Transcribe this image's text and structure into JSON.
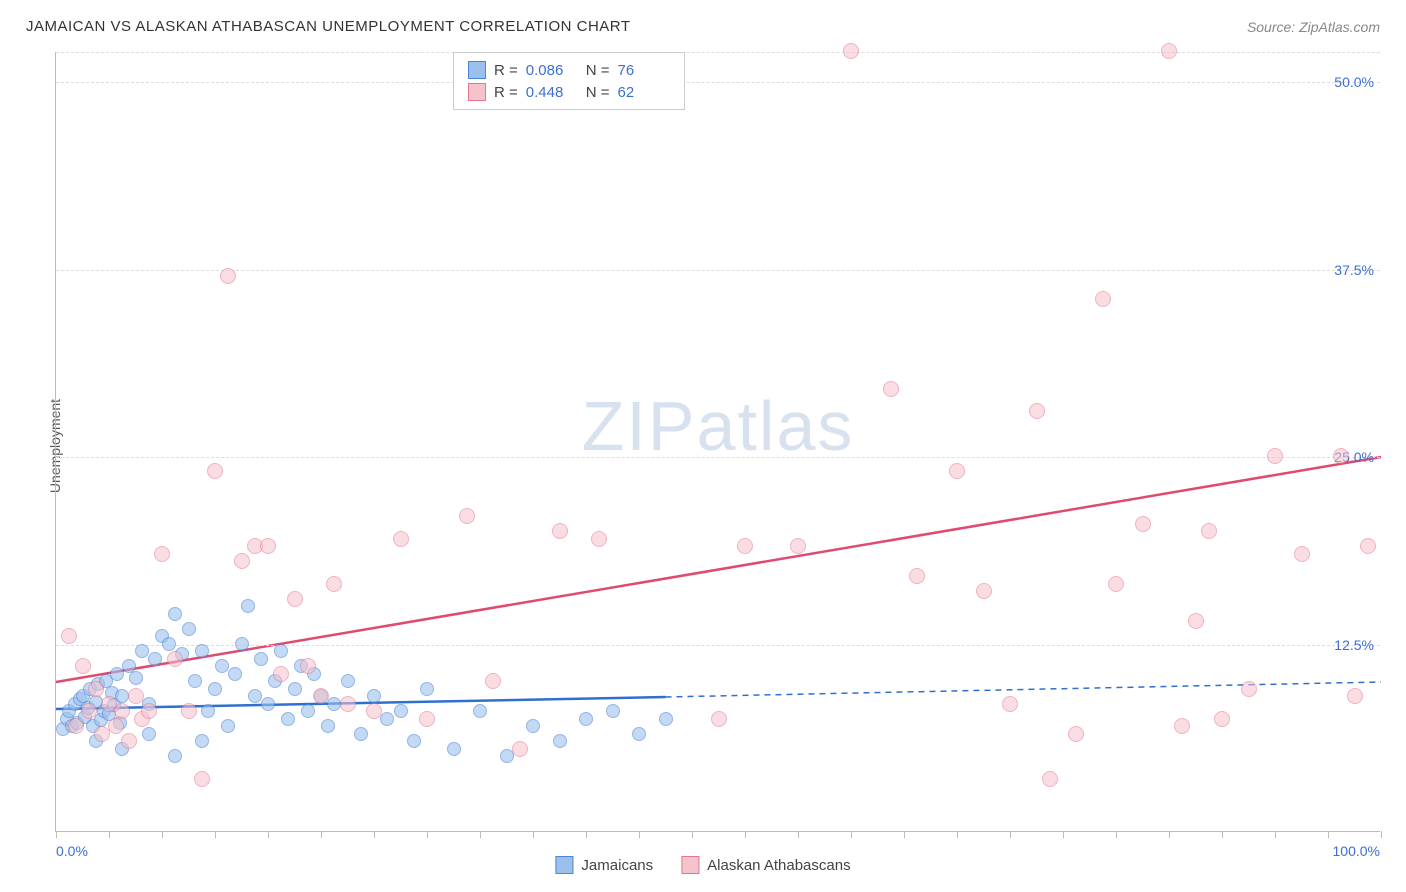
{
  "title": "JAMAICAN VS ALASKAN ATHABASCAN UNEMPLOYMENT CORRELATION CHART",
  "source": "Source: ZipAtlas.com",
  "ylabel": "Unemployment",
  "watermark_a": "ZIP",
  "watermark_b": "atlas",
  "chart": {
    "type": "scatter",
    "xlim": [
      0,
      100
    ],
    "ylim": [
      0,
      52
    ],
    "xtick_labels": [
      "0.0%",
      "100.0%"
    ],
    "ytick_positions": [
      12.5,
      25.0,
      37.5,
      50.0,
      52.0
    ],
    "ytick_labels": [
      "12.5%",
      "25.0%",
      "37.5%",
      "50.0%",
      ""
    ],
    "xtick_minor_step": 4,
    "background_color": "#ffffff",
    "grid_color": "#dddddd",
    "series": [
      {
        "name": "Jamaicans",
        "marker_fill": "#9cc0ee",
        "marker_stroke": "#4a87d8",
        "marker_opacity": 0.6,
        "marker_size": 14,
        "line_color": "#2f6fd0",
        "R": "0.086",
        "N": "76",
        "regression": {
          "x1": 0,
          "y1": 8.2,
          "x2": 46,
          "y2": 9.0,
          "dash_x2": 100,
          "dash_y2": 10.0
        },
        "points": [
          [
            0.5,
            6.8
          ],
          [
            0.8,
            7.5
          ],
          [
            1.0,
            8.0
          ],
          [
            1.2,
            7.0
          ],
          [
            1.4,
            8.5
          ],
          [
            1.6,
            7.2
          ],
          [
            1.8,
            8.8
          ],
          [
            2.0,
            9.0
          ],
          [
            2.2,
            7.6
          ],
          [
            2.4,
            8.2
          ],
          [
            2.6,
            9.5
          ],
          [
            2.8,
            7.0
          ],
          [
            3.0,
            8.6
          ],
          [
            3.2,
            9.8
          ],
          [
            3.4,
            7.4
          ],
          [
            3.6,
            8.0
          ],
          [
            3.8,
            10.0
          ],
          [
            4.0,
            7.8
          ],
          [
            4.2,
            9.2
          ],
          [
            4.4,
            8.4
          ],
          [
            4.6,
            10.5
          ],
          [
            4.8,
            7.2
          ],
          [
            5.0,
            9.0
          ],
          [
            5.5,
            11.0
          ],
          [
            6.0,
            10.2
          ],
          [
            6.5,
            12.0
          ],
          [
            7.0,
            8.5
          ],
          [
            7.5,
            11.5
          ],
          [
            8.0,
            13.0
          ],
          [
            8.5,
            12.5
          ],
          [
            9.0,
            14.5
          ],
          [
            9.5,
            11.8
          ],
          [
            10.0,
            13.5
          ],
          [
            10.5,
            10.0
          ],
          [
            11.0,
            12.0
          ],
          [
            11.5,
            8.0
          ],
          [
            12.0,
            9.5
          ],
          [
            12.5,
            11.0
          ],
          [
            13.0,
            7.0
          ],
          [
            13.5,
            10.5
          ],
          [
            14.0,
            12.5
          ],
          [
            14.5,
            15.0
          ],
          [
            15.0,
            9.0
          ],
          [
            15.5,
            11.5
          ],
          [
            16.0,
            8.5
          ],
          [
            16.5,
            10.0
          ],
          [
            17.0,
            12.0
          ],
          [
            17.5,
            7.5
          ],
          [
            18.0,
            9.5
          ],
          [
            18.5,
            11.0
          ],
          [
            19.0,
            8.0
          ],
          [
            19.5,
            10.5
          ],
          [
            20.0,
            9.0
          ],
          [
            20.5,
            7.0
          ],
          [
            21.0,
            8.5
          ],
          [
            22.0,
            10.0
          ],
          [
            23.0,
            6.5
          ],
          [
            24.0,
            9.0
          ],
          [
            25.0,
            7.5
          ],
          [
            26.0,
            8.0
          ],
          [
            27.0,
            6.0
          ],
          [
            28.0,
            9.5
          ],
          [
            30.0,
            5.5
          ],
          [
            32.0,
            8.0
          ],
          [
            34.0,
            5.0
          ],
          [
            36.0,
            7.0
          ],
          [
            38.0,
            6.0
          ],
          [
            40.0,
            7.5
          ],
          [
            42.0,
            8.0
          ],
          [
            44.0,
            6.5
          ],
          [
            46.0,
            7.5
          ],
          [
            3.0,
            6.0
          ],
          [
            5.0,
            5.5
          ],
          [
            7.0,
            6.5
          ],
          [
            9.0,
            5.0
          ],
          [
            11.0,
            6.0
          ]
        ]
      },
      {
        "name": "Alaskan Athabascans",
        "marker_fill": "#f5c3cc",
        "marker_stroke": "#e5748e",
        "marker_opacity": 0.55,
        "marker_size": 16,
        "line_color": "#e04a6f",
        "R": "0.448",
        "N": "62",
        "regression": {
          "x1": 0,
          "y1": 10.0,
          "x2": 100,
          "y2": 25.0
        },
        "points": [
          [
            1.0,
            13.0
          ],
          [
            1.5,
            7.0
          ],
          [
            2.0,
            11.0
          ],
          [
            2.5,
            8.0
          ],
          [
            3.0,
            9.5
          ],
          [
            3.5,
            6.5
          ],
          [
            4.0,
            8.5
          ],
          [
            4.5,
            7.0
          ],
          [
            5.0,
            8.0
          ],
          [
            5.5,
            6.0
          ],
          [
            6.0,
            9.0
          ],
          [
            6.5,
            7.5
          ],
          [
            7.0,
            8.0
          ],
          [
            8.0,
            18.5
          ],
          [
            9.0,
            11.5
          ],
          [
            10.0,
            8.0
          ],
          [
            11.0,
            3.5
          ],
          [
            12.0,
            24.0
          ],
          [
            13.0,
            37.0
          ],
          [
            14.0,
            18.0
          ],
          [
            15.0,
            19.0
          ],
          [
            16.0,
            19.0
          ],
          [
            17.0,
            10.5
          ],
          [
            18.0,
            15.5
          ],
          [
            19.0,
            11.0
          ],
          [
            20.0,
            9.0
          ],
          [
            21.0,
            16.5
          ],
          [
            22.0,
            8.5
          ],
          [
            24.0,
            8.0
          ],
          [
            26.0,
            19.5
          ],
          [
            28.0,
            7.5
          ],
          [
            31.0,
            21.0
          ],
          [
            33.0,
            10.0
          ],
          [
            35.0,
            5.5
          ],
          [
            38.0,
            20.0
          ],
          [
            41.0,
            19.5
          ],
          [
            50.0,
            7.5
          ],
          [
            52.0,
            19.0
          ],
          [
            56.0,
            19.0
          ],
          [
            60.0,
            52.0
          ],
          [
            63.0,
            29.5
          ],
          [
            65.0,
            17.0
          ],
          [
            68.0,
            24.0
          ],
          [
            70.0,
            16.0
          ],
          [
            72.0,
            8.5
          ],
          [
            74.0,
            28.0
          ],
          [
            75.0,
            3.5
          ],
          [
            77.0,
            6.5
          ],
          [
            79.0,
            35.5
          ],
          [
            80.0,
            16.5
          ],
          [
            82.0,
            20.5
          ],
          [
            84.0,
            52.0
          ],
          [
            85.0,
            7.0
          ],
          [
            86.0,
            14.0
          ],
          [
            87.0,
            20.0
          ],
          [
            88.0,
            7.5
          ],
          [
            90.0,
            9.5
          ],
          [
            92.0,
            25.0
          ],
          [
            94.0,
            18.5
          ],
          [
            97.0,
            25.0
          ],
          [
            98.0,
            9.0
          ],
          [
            99.0,
            19.0
          ]
        ]
      }
    ]
  },
  "legend_bottom": [
    {
      "label": "Jamaicans",
      "fill": "#9cc0ee",
      "stroke": "#4a87d8"
    },
    {
      "label": "Alaskan Athabascans",
      "fill": "#f5c3cc",
      "stroke": "#e5748e"
    }
  ]
}
